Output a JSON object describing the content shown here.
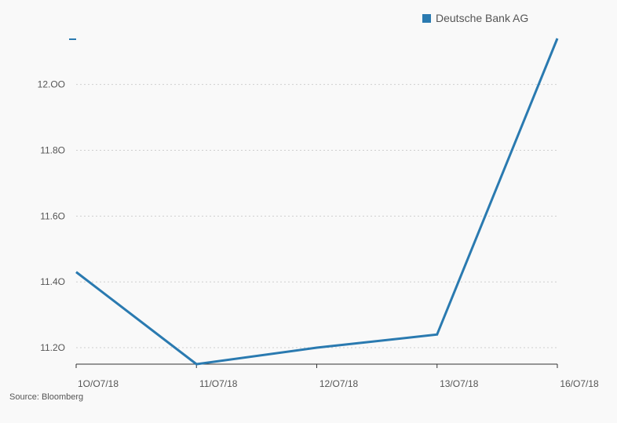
{
  "chart_data": {
    "type": "line",
    "categories": [
      "10/07/18",
      "11/07/18",
      "12/07/18",
      "13/07/18",
      "16/07/18"
    ],
    "series": [
      {
        "name": "Deutsche Bank AG",
        "values": [
          11.43,
          11.15,
          11.2,
          11.24,
          12.14
        ],
        "color": "#2a7ab0"
      }
    ],
    "y_ticks": [
      11.2,
      11.4,
      11.6,
      11.8,
      12.0
    ],
    "y_tick_labels": [
      "11.2O",
      "11.4O",
      "11.6O",
      "11.8O",
      "12.OO"
    ],
    "x_tick_labels": [
      "1O/O7/18",
      "11/O7/18",
      "12/O7/18",
      "13/O7/18",
      "16/O7/18"
    ],
    "ylim": [
      11.15,
      12.14
    ],
    "grid": true,
    "legend_position": "top-right"
  },
  "legend": {
    "label": "Deutsche Bank AG",
    "color": "#2a7ab0"
  },
  "source": "Source: Bloomberg"
}
